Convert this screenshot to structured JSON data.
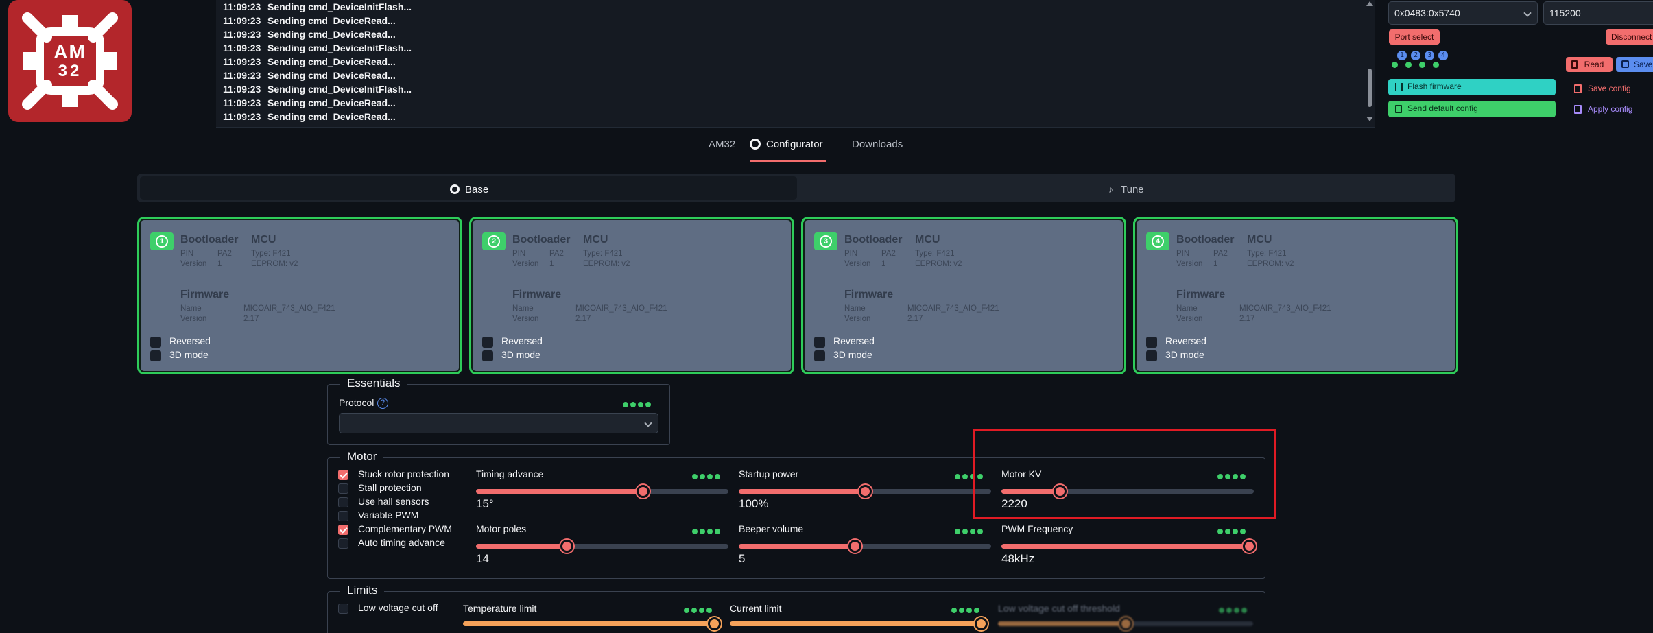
{
  "logo": {
    "text_top": "AM",
    "text_bottom": "32"
  },
  "log": {
    "lines": [
      {
        "time": "11:09:23",
        "msg": "Sending cmd_DeviceInitFlash..."
      },
      {
        "time": "11:09:23",
        "msg": "Sending cmd_DeviceRead..."
      },
      {
        "time": "11:09:23",
        "msg": "Sending cmd_DeviceRead..."
      },
      {
        "time": "11:09:23",
        "msg": "Sending cmd_DeviceInitFlash..."
      },
      {
        "time": "11:09:23",
        "msg": "Sending cmd_DeviceRead..."
      },
      {
        "time": "11:09:23",
        "msg": "Sending cmd_DeviceRead..."
      },
      {
        "time": "11:09:23",
        "msg": "Sending cmd_DeviceInitFlash..."
      },
      {
        "time": "11:09:23",
        "msg": "Sending cmd_DeviceRead..."
      },
      {
        "time": "11:09:23",
        "msg": "Sending cmd_DeviceRead..."
      }
    ]
  },
  "connection": {
    "port_value": "0x0483:0x5740",
    "baud_value": "115200",
    "port_select_label": "Port select",
    "disconnect_label": "Disconnect",
    "esc_numbers": [
      "1",
      "2",
      "3",
      "4"
    ],
    "read_label": "Read",
    "save_label": "Save",
    "flash_firmware_label": "Flash firmware",
    "send_default_label": "Send default config",
    "save_config_label": "Save config",
    "apply_config_label": "Apply config"
  },
  "nav": {
    "tabs": [
      "AM32",
      "Configurator",
      "Downloads"
    ],
    "active": "Configurator"
  },
  "segment": {
    "base_label": "Base",
    "tune_label": "Tune"
  },
  "escs": [
    {
      "num": "1",
      "bootloader": "Bootloader",
      "mcu": "MCU",
      "pin_k": "PIN",
      "pin_v": "PA2",
      "ver_k": "Version",
      "ver_v": "1",
      "type": "Type: F421",
      "eeprom": "EEPROM: v2",
      "fw": "Firmware",
      "name_k": "Name",
      "name_v": "MICOAIR_743_AIO_F421",
      "fwver_k": "Version",
      "fwver_v": "2.17",
      "reversed": "Reversed",
      "mode3d": "3D mode"
    },
    {
      "num": "2",
      "bootloader": "Bootloader",
      "mcu": "MCU",
      "pin_k": "PIN",
      "pin_v": "PA2",
      "ver_k": "Version",
      "ver_v": "1",
      "type": "Type: F421",
      "eeprom": "EEPROM: v2",
      "fw": "Firmware",
      "name_k": "Name",
      "name_v": "MICOAIR_743_AIO_F421",
      "fwver_k": "Version",
      "fwver_v": "2.17",
      "reversed": "Reversed",
      "mode3d": "3D mode"
    },
    {
      "num": "3",
      "bootloader": "Bootloader",
      "mcu": "MCU",
      "pin_k": "PIN",
      "pin_v": "PA2",
      "ver_k": "Version",
      "ver_v": "1",
      "type": "Type: F421",
      "eeprom": "EEPROM: v2",
      "fw": "Firmware",
      "name_k": "Name",
      "name_v": "MICOAIR_743_AIO_F421",
      "fwver_k": "Version",
      "fwver_v": "2.17",
      "reversed": "Reversed",
      "mode3d": "3D mode"
    },
    {
      "num": "4",
      "bootloader": "Bootloader",
      "mcu": "MCU",
      "pin_k": "PIN",
      "pin_v": "PA2",
      "ver_k": "Version",
      "ver_v": "1",
      "type": "Type: F421",
      "eeprom": "EEPROM: v2",
      "fw": "Firmware",
      "name_k": "Name",
      "name_v": "MICOAIR_743_AIO_F421",
      "fwver_k": "Version",
      "fwver_v": "2.17",
      "reversed": "Reversed",
      "mode3d": "3D mode"
    }
  ],
  "essentials": {
    "legend": "Essentials",
    "protocol_label": "Protocol",
    "help": "?"
  },
  "motor": {
    "legend": "Motor",
    "checks": [
      {
        "label": "Stuck rotor protection",
        "checked": true
      },
      {
        "label": "Stall protection",
        "checked": false
      },
      {
        "label": "Use hall sensors",
        "checked": false
      },
      {
        "label": "Variable PWM",
        "checked": false
      },
      {
        "label": "Complementary PWM",
        "checked": true
      },
      {
        "label": "Auto timing advance",
        "checked": false
      }
    ],
    "sliders": [
      {
        "label": "Timing advance",
        "value": "15°",
        "fraction": 0.66
      },
      {
        "label": "Startup power",
        "value": "100%",
        "fraction": 0.5
      },
      {
        "label": "Motor KV",
        "value": "2220",
        "fraction": 0.23
      },
      {
        "label": "Motor poles",
        "value": "14",
        "fraction": 0.36
      },
      {
        "label": "Beeper volume",
        "value": "5",
        "fraction": 0.46
      },
      {
        "label": "PWM Frequency",
        "value": "48kHz",
        "fraction": 0.98
      }
    ]
  },
  "limits": {
    "legend": "Limits",
    "low_voltage_cutoff": "Low voltage cut off",
    "temp_label": "Temperature limit",
    "current_label": "Current limit",
    "lv_threshold_label": "Low voltage cut off threshold"
  },
  "colors": {
    "accent": "#f26d6d",
    "ok": "#3ecf6a",
    "card": "#5f6d83",
    "bg": "#0d1117"
  }
}
